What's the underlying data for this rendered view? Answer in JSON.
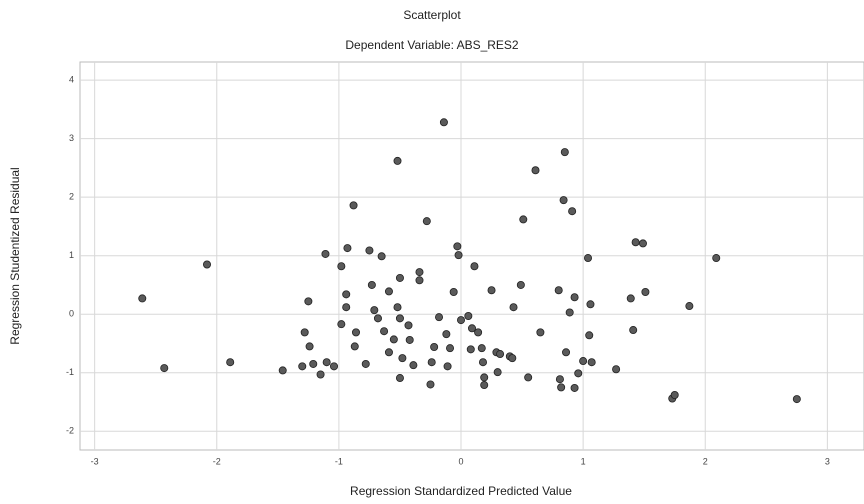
{
  "chart_data": {
    "type": "scatter",
    "title": "Scatterplot",
    "subtitle": "Dependent Variable: ABS_RES2",
    "x_label": "Regression Standardized Predicted Value",
    "y_label": "Regression Studentized Residual",
    "xlim": [
      -3.12,
      3.3
    ],
    "ylim": [
      -2.32,
      4.31
    ],
    "xticks": [
      -3,
      -2,
      -1,
      0,
      1,
      2,
      3
    ],
    "yticks": [
      -2,
      -1,
      0,
      1,
      2,
      3,
      4
    ],
    "grid": true,
    "color": "#5a5a5a",
    "x": [
      -2.61,
      -2.43,
      -2.08,
      -1.89,
      -1.46,
      -1.3,
      -1.25,
      -1.28,
      -1.24,
      -1.21,
      -1.15,
      -1.1,
      -1.04,
      -1.11,
      -0.98,
      -0.93,
      -0.88,
      -0.98,
      -0.94,
      -0.94,
      -0.86,
      -0.87,
      -0.78,
      -0.73,
      -0.75,
      -0.71,
      -0.68,
      -0.65,
      -0.59,
      -0.63,
      -0.59,
      -0.55,
      -0.52,
      -0.52,
      -0.5,
      -0.5,
      -0.48,
      -0.5,
      -0.43,
      -0.42,
      -0.39,
      -0.34,
      -0.34,
      -0.28,
      -0.25,
      -0.24,
      -0.22,
      -0.18,
      -0.14,
      -0.12,
      -0.11,
      -0.09,
      -0.06,
      -0.03,
      -0.02,
      0.0,
      0.06,
      0.08,
      0.11,
      0.09,
      0.14,
      0.17,
      0.18,
      0.19,
      0.19,
      0.25,
      0.29,
      0.3,
      0.32,
      0.4,
      0.42,
      0.43,
      0.49,
      0.51,
      0.55,
      0.61,
      0.65,
      0.8,
      0.81,
      0.82,
      0.85,
      0.84,
      0.86,
      0.89,
      0.91,
      0.93,
      0.93,
      0.96,
      1.0,
      1.04,
      1.05,
      1.06,
      1.07,
      1.27,
      1.39,
      1.41,
      1.43,
      1.49,
      1.51,
      1.73,
      1.75,
      1.87,
      2.09,
      2.75
    ],
    "y": [
      0.27,
      -0.92,
      0.85,
      -0.82,
      -0.96,
      -0.89,
      0.22,
      -0.31,
      -0.55,
      -0.85,
      -1.03,
      -0.82,
      -0.89,
      1.03,
      0.82,
      1.13,
      1.86,
      -0.17,
      0.12,
      0.34,
      -0.31,
      -0.55,
      -0.85,
      0.5,
      1.09,
      0.07,
      -0.07,
      0.99,
      0.39,
      -0.29,
      -0.65,
      -0.43,
      2.62,
      0.12,
      0.62,
      -0.07,
      -0.75,
      -1.09,
      -0.19,
      -0.44,
      -0.87,
      0.72,
      0.58,
      1.59,
      -1.2,
      -0.82,
      -0.56,
      -0.05,
      3.28,
      -0.34,
      -0.89,
      -0.58,
      0.38,
      1.16,
      1.01,
      -0.1,
      -0.03,
      -0.6,
      0.82,
      -0.24,
      -0.31,
      -0.58,
      -0.82,
      -1.08,
      -1.21,
      0.41,
      -0.65,
      -0.99,
      -0.68,
      -0.72,
      -0.75,
      0.12,
      0.5,
      1.62,
      -1.08,
      2.46,
      -0.31,
      0.41,
      -1.11,
      -1.25,
      2.77,
      1.95,
      -0.65,
      0.03,
      1.76,
      0.29,
      -1.26,
      -1.01,
      -0.8,
      0.96,
      -0.36,
      0.17,
      -0.82,
      -0.94,
      0.27,
      -0.27,
      1.23,
      1.21,
      0.38,
      -1.44,
      -1.38,
      0.14,
      0.96,
      -1.45
    ]
  }
}
